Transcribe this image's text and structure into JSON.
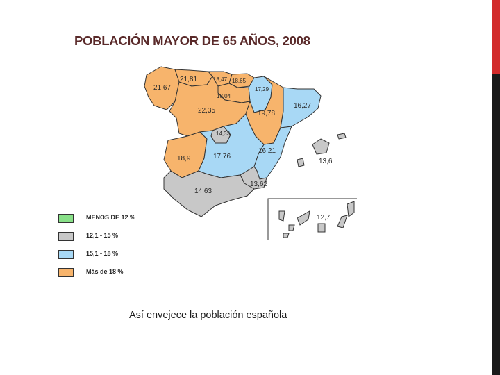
{
  "title": "POBLACIÓN MAYOR DE 65 AÑOS, 2008",
  "legend": [
    {
      "label": "MENOS DE 12 %",
      "color": "#88e088"
    },
    {
      "label": "12,1 - 15 %",
      "color": "#c8c8c8"
    },
    {
      "label": "15,1 - 18 %",
      "color": "#a8d8f5"
    },
    {
      "label": "Más de 18 %",
      "color": "#f7b46c"
    }
  ],
  "regions": [
    {
      "name": "Galicia",
      "value": "21,67",
      "class": "Más de 18 %"
    },
    {
      "name": "Asturias",
      "value": "21,81",
      "class": "Más de 18 %"
    },
    {
      "name": "Cantabria",
      "value": "18,47",
      "class": "Más de 18 %"
    },
    {
      "name": "País Vasco",
      "value": "18,65",
      "class": "Más de 18 %"
    },
    {
      "name": "Navarra",
      "value": "17,29",
      "class": "15,1 - 18 %"
    },
    {
      "name": "La Rioja",
      "value": "18,04",
      "class": "Más de 18 %"
    },
    {
      "name": "Castilla y León",
      "value": "22,35",
      "class": "Más de 18 %"
    },
    {
      "name": "Aragón",
      "value": "19,78",
      "class": "Más de 18 %"
    },
    {
      "name": "Cataluña",
      "value": "16,27",
      "class": "15,1 - 18 %"
    },
    {
      "name": "Madrid",
      "value": "14,33",
      "class": "12,1 - 15 %"
    },
    {
      "name": "Extremadura",
      "value": "18,9",
      "class": "Más de 18 %"
    },
    {
      "name": "Castilla-La Mancha",
      "value": "17,76",
      "class": "15,1 - 18 %"
    },
    {
      "name": "Comunidad Valenciana",
      "value": "16,21",
      "class": "15,1 - 18 %"
    },
    {
      "name": "Islas Baleares",
      "value": "13,6",
      "class": "12,1 - 15 %"
    },
    {
      "name": "Andalucía",
      "value": "14,63",
      "class": "12,1 - 15 %"
    },
    {
      "name": "Murcia",
      "value": "13,62",
      "class": "12,1 - 15 %"
    },
    {
      "name": "Canarias",
      "value": "12,7",
      "class": "12,1 - 15 %"
    }
  ],
  "caption": "Así envejece la población española"
}
